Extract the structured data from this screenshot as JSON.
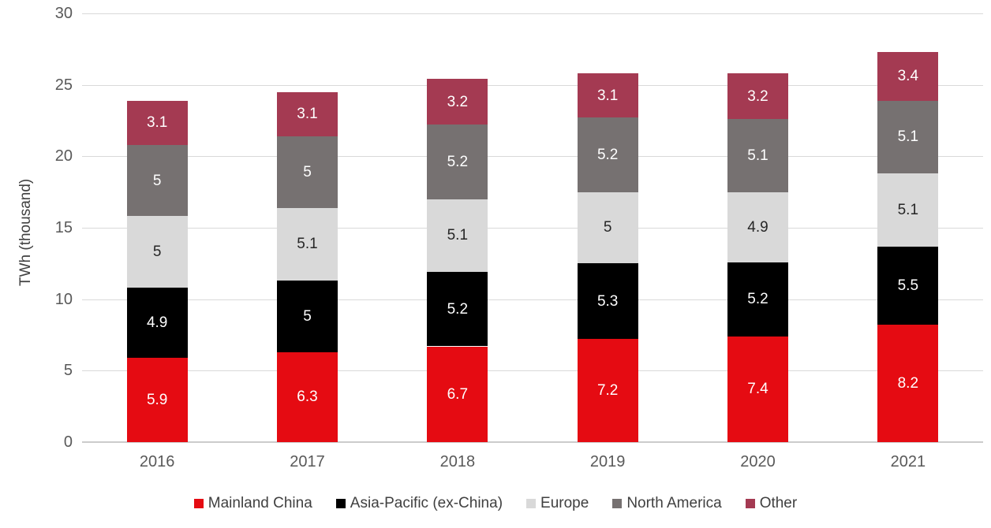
{
  "chart_data": {
    "type": "bar",
    "stacked": true,
    "title": "",
    "xlabel": "",
    "ylabel": "TWh (thousand)",
    "categories": [
      "2016",
      "2017",
      "2018",
      "2019",
      "2020",
      "2021"
    ],
    "series": [
      {
        "name": "Mainland China",
        "color": "#e50b12",
        "label_color": "#ffffff",
        "values": [
          5.9,
          6.3,
          6.7,
          7.2,
          7.4,
          8.2
        ]
      },
      {
        "name": "Asia-Pacific (ex-China)",
        "color": "#000000",
        "label_color": "#ffffff",
        "values": [
          4.9,
          5,
          5.2,
          5.3,
          5.2,
          5.5
        ]
      },
      {
        "name": "Europe",
        "color": "#d9d9d9",
        "label_color": "#262626",
        "values": [
          5,
          5.1,
          5.1,
          5,
          4.9,
          5.1
        ]
      },
      {
        "name": "North America",
        "color": "#767171",
        "label_color": "#ffffff",
        "values": [
          5,
          5,
          5.2,
          5.2,
          5.1,
          5.1
        ]
      },
      {
        "name": "Other",
        "color": "#a43a52",
        "label_color": "#ffffff",
        "values": [
          3.1,
          3.1,
          3.2,
          3.1,
          3.2,
          3.4
        ]
      }
    ],
    "y_axis": {
      "min": 0,
      "max": 30,
      "step": 5,
      "tick_labels": [
        "0",
        "5",
        "10",
        "15",
        "20",
        "25",
        "30"
      ]
    },
    "grid": true,
    "legend_position": "bottom",
    "colors": {
      "gridline": "#d9d9d9",
      "baseline": "#cccccc",
      "axis_text": "#595959",
      "legend_text": "#404040"
    }
  }
}
